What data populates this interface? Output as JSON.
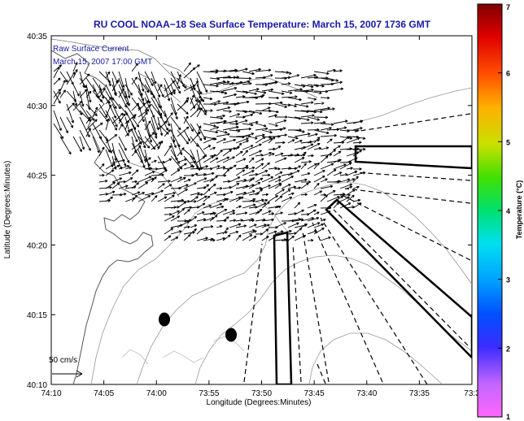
{
  "map": {
    "title": "RU COOL  NOAA−18  Sea Surface Temperature:  March 15, 2007 1736 GMT",
    "inset_label_line1": "Raw Surface Current",
    "inset_label_line2": "March 15, 2007 17:00 GMT",
    "scale_label": "50 cm/s",
    "xlabel": "Longitude (Degrees:Minutes)",
    "ylabel": "Latitude (Degrees:Minutes)",
    "x_ticks": [
      "74:10",
      "74:05",
      "74:00",
      "73:55",
      "73:50",
      "73:45",
      "73:40",
      "73:35",
      "73:3"
    ],
    "y_ticks": [
      "40:35",
      "40:30",
      "40:25",
      "40:20",
      "40:15",
      "40:10"
    ]
  },
  "colorbar": {
    "label": "Temperature (°C)",
    "min": 1,
    "max": 7,
    "ticks": [
      "7",
      "6",
      "5",
      "4",
      "3",
      "2",
      "1"
    ]
  }
}
